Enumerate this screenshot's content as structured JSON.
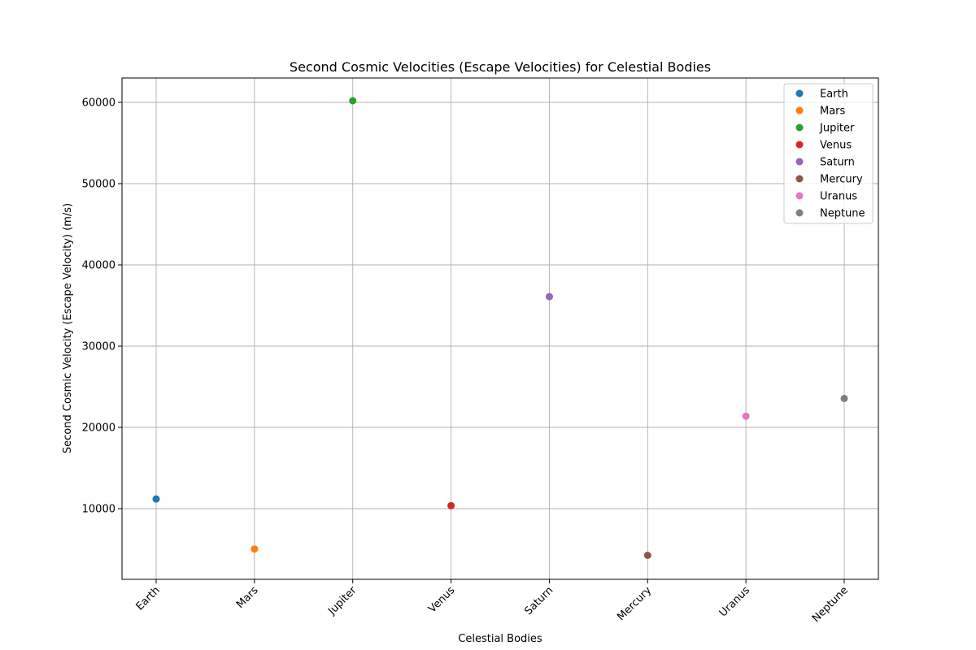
{
  "chart_data": {
    "type": "scatter",
    "title": "Second Cosmic Velocities (Escape Velocities) for Celestial Bodies",
    "xlabel": "Celestial Bodies",
    "ylabel": "Second Cosmic Velocity (Escape Velocity) (m/s)",
    "categories": [
      "Earth",
      "Mars",
      "Jupiter",
      "Venus",
      "Saturn",
      "Mercury",
      "Uranus",
      "Neptune"
    ],
    "yticks": [
      10000,
      20000,
      30000,
      40000,
      50000,
      60000
    ],
    "ylim": [
      1300,
      63000
    ],
    "grid": true,
    "legend_position": "top-right",
    "series": [
      {
        "name": "Earth",
        "x": "Earth",
        "y": 11186,
        "color": "#1f77b4"
      },
      {
        "name": "Mars",
        "x": "Mars",
        "y": 5030,
        "color": "#ff7f0e"
      },
      {
        "name": "Jupiter",
        "x": "Jupiter",
        "y": 60200,
        "color": "#2ca02c"
      },
      {
        "name": "Venus",
        "x": "Venus",
        "y": 10360,
        "color": "#d62728"
      },
      {
        "name": "Saturn",
        "x": "Saturn",
        "y": 36090,
        "color": "#9467bd"
      },
      {
        "name": "Mercury",
        "x": "Mercury",
        "y": 4250,
        "color": "#8c564b"
      },
      {
        "name": "Uranus",
        "x": "Uranus",
        "y": 21380,
        "color": "#e377c2"
      },
      {
        "name": "Neptune",
        "x": "Neptune",
        "y": 23560,
        "color": "#7f7f7f"
      }
    ]
  }
}
